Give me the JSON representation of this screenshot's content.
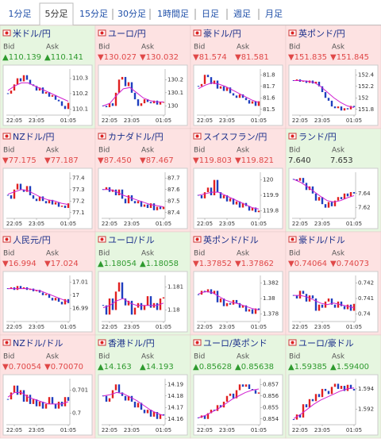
{
  "tabs": [
    "1分足",
    "5分足",
    "15分足",
    "30分足",
    "1時間足",
    "日足",
    "週足",
    "月足"
  ],
  "active_tab": 1,
  "bid_label": "Bid",
  "ask_label": "Ask",
  "xticks": [
    {
      "value": 2,
      "label": "22:05"
    },
    {
      "value": 9,
      "label": "23:05"
    },
    {
      "value": 19,
      "label": "01:05"
    }
  ],
  "tiles": [
    {
      "name": "米ドル/円",
      "trend": "up",
      "bid": "▲110.139",
      "ask": "▲110.141",
      "chart": {
        "ylim": [
          110.06,
          110.36
        ],
        "yticks": [
          110.3,
          110.2,
          110.1
        ],
        "closes": [
          110.2,
          110.22,
          110.26,
          110.3,
          110.28,
          110.32,
          110.29,
          110.26,
          110.25,
          110.22,
          110.24,
          110.2,
          110.21,
          110.18,
          110.19,
          110.16,
          110.15,
          110.12,
          110.1,
          110.14
        ],
        "ma": [
          110.22,
          110.25,
          110.27,
          110.27,
          110.25,
          110.23,
          110.21,
          110.19,
          110.17,
          110.15
        ]
      }
    },
    {
      "name": "ユーロ/円",
      "trend": "down",
      "bid": "▼130.027",
      "ask": "▼130.032",
      "chart": {
        "ylim": [
          129.93,
          130.28
        ],
        "yticks": [
          130.2,
          130.1,
          130
        ],
        "closes": [
          130.0,
          129.99,
          130.02,
          130.0,
          130.1,
          130.2,
          130.22,
          130.15,
          130.18,
          130.1,
          130.05,
          130.0,
          130.02,
          130.05,
          130.03,
          130.02,
          130.04,
          130.01,
          130.03,
          130.03
        ],
        "ma": [
          130.0,
          130.02,
          130.08,
          130.13,
          130.14,
          130.1,
          130.06,
          130.04,
          130.03,
          130.03
        ]
      }
    },
    {
      "name": "豪ドル/円",
      "trend": "down",
      "bid": "▼81.574",
      "ask": "▼81.581",
      "chart": {
        "ylim": [
          81.45,
          81.85
        ],
        "yticks": [
          81.8,
          81.7,
          81.6,
          81.5
        ],
        "closes": [
          81.7,
          81.72,
          81.8,
          81.78,
          81.72,
          81.75,
          81.68,
          81.7,
          81.66,
          81.69,
          81.64,
          81.62,
          81.6,
          81.63,
          81.6,
          81.58,
          81.55,
          81.57,
          81.53,
          81.57
        ],
        "ma": [
          81.68,
          81.71,
          81.73,
          81.72,
          81.7,
          81.67,
          81.64,
          81.61,
          81.58,
          81.56
        ]
      }
    },
    {
      "name": "英ポンド/円",
      "trend": "down",
      "bid": "▼151.835",
      "ask": "▼151.845",
      "chart": {
        "ylim": [
          151.7,
          152.5
        ],
        "yticks": [
          152.4,
          152.2,
          152,
          151.8
        ],
        "closes": [
          152.3,
          152.32,
          152.28,
          152.3,
          152.26,
          152.3,
          152.25,
          152.28,
          152.2,
          152.1,
          152.0,
          151.95,
          151.85,
          151.82,
          151.85,
          151.78,
          151.82,
          151.8,
          151.86,
          151.84
        ],
        "ma": [
          152.3,
          152.3,
          152.29,
          152.27,
          152.2,
          152.1,
          152.0,
          151.92,
          151.86,
          151.83
        ]
      }
    },
    {
      "name": "NZドル/円",
      "trend": "down",
      "bid": "▼77.175",
      "ask": "▼77.187",
      "chart": {
        "ylim": [
          77.05,
          77.45
        ],
        "yticks": [
          77.4,
          77.3,
          77.2,
          77.1
        ],
        "closes": [
          77.25,
          77.22,
          77.3,
          77.35,
          77.3,
          77.28,
          77.33,
          77.25,
          77.22,
          77.2,
          77.24,
          77.2,
          77.18,
          77.21,
          77.17,
          77.19,
          77.15,
          77.16,
          77.14,
          77.18
        ],
        "ma": [
          77.26,
          77.28,
          77.3,
          77.29,
          77.26,
          77.23,
          77.21,
          77.2,
          77.18,
          77.17
        ]
      }
    },
    {
      "name": "カナダドル/円",
      "trend": "down",
      "bid": "▼87.450",
      "ask": "▼87.467",
      "chart": {
        "ylim": [
          87.35,
          87.75
        ],
        "yticks": [
          87.7,
          87.6,
          87.5,
          87.4
        ],
        "closes": [
          87.6,
          87.62,
          87.58,
          87.6,
          87.55,
          87.6,
          87.52,
          87.48,
          87.55,
          87.5,
          87.48,
          87.5,
          87.45,
          87.47,
          87.44,
          87.48,
          87.42,
          87.45,
          87.43,
          87.45
        ],
        "ma": [
          87.6,
          87.6,
          87.58,
          87.55,
          87.53,
          87.51,
          87.49,
          87.47,
          87.46,
          87.45
        ]
      }
    },
    {
      "name": "スイスフラン/円",
      "trend": "down",
      "bid": "▼119.803",
      "ask": "▼119.821",
      "chart": {
        "ylim": [
          119.75,
          120.05
        ],
        "yticks": [
          120,
          119.9,
          119.8
        ],
        "closes": [
          119.9,
          119.88,
          119.92,
          119.95,
          119.9,
          120.0,
          119.92,
          119.88,
          119.9,
          119.86,
          119.88,
          119.84,
          119.86,
          119.82,
          119.85,
          119.83,
          119.8,
          119.82,
          119.79,
          119.8
        ],
        "ma": [
          119.9,
          119.91,
          119.92,
          119.92,
          119.9,
          119.88,
          119.86,
          119.84,
          119.82,
          119.81
        ]
      }
    },
    {
      "name": "ランド/円",
      "trend": "up",
      "bid": "7.640",
      "ask": "7.653",
      "chart": {
        "ylim": [
          7.605,
          7.67
        ],
        "yticks": [
          7.64,
          7.62
        ],
        "closes": [
          7.66,
          7.658,
          7.662,
          7.655,
          7.645,
          7.65,
          7.64,
          7.63,
          7.635,
          7.625,
          7.62,
          7.628,
          7.622,
          7.63,
          7.635,
          7.632,
          7.64,
          7.636,
          7.642,
          7.64
        ],
        "ma": [
          7.66,
          7.656,
          7.65,
          7.643,
          7.636,
          7.63,
          7.628,
          7.63,
          7.634,
          7.637
        ]
      }
    },
    {
      "name": "人民元/円",
      "trend": "down",
      "bid": "▼16.994",
      "ask": "▼17.024",
      "chart": {
        "ylim": [
          16.98,
          17.015
        ],
        "yticks": [
          17.01,
          17,
          16.99
        ],
        "closes": [
          17.005,
          17.006,
          17.004,
          17.007,
          17.005,
          17.006,
          17.004,
          17.005,
          17.003,
          17.004,
          17.002,
          17.0,
          17.001,
          16.998,
          16.996,
          16.998,
          16.995,
          16.993,
          16.997,
          16.994
        ],
        "ma": [
          17.005,
          17.005,
          17.005,
          17.005,
          17.004,
          17.003,
          17.001,
          16.999,
          16.997,
          16.995
        ]
      }
    },
    {
      "name": "ユーロ/ドル",
      "trend": "up",
      "bid": "▲1.18054",
      "ask": "▲1.18058",
      "chart": {
        "ylim": [
          1.1795,
          1.1815
        ],
        "yticks": [
          1.181,
          1.18
        ],
        "closes": [
          1.1802,
          1.1798,
          1.1805,
          1.18,
          1.1808,
          1.1812,
          1.1805,
          1.1802,
          1.1804,
          1.1798,
          1.1801,
          1.1803,
          1.18,
          1.1802,
          1.1806,
          1.1801,
          1.1803,
          1.18,
          1.1805,
          1.18055
        ],
        "ma": [
          1.1801,
          1.1802,
          1.1804,
          1.1805,
          1.1803,
          1.1802,
          1.1802,
          1.1802,
          1.1802,
          1.1803
        ]
      }
    },
    {
      "name": "英ポンド/ドル",
      "trend": "down",
      "bid": "▼1.37852",
      "ask": "▼1.37862",
      "chart": {
        "ylim": [
          1.377,
          1.383
        ],
        "yticks": [
          1.382,
          1.38,
          1.378
        ],
        "closes": [
          1.3805,
          1.381,
          1.3808,
          1.3812,
          1.3806,
          1.381,
          1.3795,
          1.38,
          1.379,
          1.3794,
          1.3792,
          1.3798,
          1.3794,
          1.3788,
          1.3791,
          1.3783,
          1.3786,
          1.378,
          1.3787,
          1.3785
        ],
        "ma": [
          1.3806,
          1.3809,
          1.3808,
          1.3803,
          1.3798,
          1.3795,
          1.3793,
          1.379,
          1.3787,
          1.3785
        ]
      }
    },
    {
      "name": "豪ドル/ドル",
      "trend": "down",
      "bid": "▼0.74064",
      "ask": "▼0.74073",
      "chart": {
        "ylim": [
          0.7395,
          0.7425
        ],
        "yticks": [
          0.742,
          0.741,
          0.74
        ],
        "closes": [
          0.7412,
          0.741,
          0.7415,
          0.7413,
          0.7408,
          0.7412,
          0.741,
          0.7402,
          0.7406,
          0.7404,
          0.7408,
          0.741,
          0.7406,
          0.7404,
          0.7408,
          0.7405,
          0.7403,
          0.7406,
          0.7402,
          0.74065
        ],
        "ma": [
          0.7412,
          0.7412,
          0.7411,
          0.7409,
          0.7407,
          0.7406,
          0.7407,
          0.7406,
          0.7405,
          0.7404
        ]
      }
    },
    {
      "name": "NZドル/ドル",
      "trend": "down",
      "bid": "▼0.70054",
      "ask": "▼0.70070",
      "chart": {
        "ylim": [
          0.6995,
          0.7015
        ],
        "yticks": [
          0.701,
          0.7
        ],
        "closes": [
          0.7006,
          0.7009,
          0.7012,
          0.7008,
          0.701,
          0.7005,
          0.7008,
          0.7004,
          0.7006,
          0.7003,
          0.7005,
          0.7002,
          0.7004,
          0.7007,
          0.7004,
          0.7002,
          0.7005,
          0.7003,
          0.7007,
          0.70054
        ],
        "ma": [
          0.7007,
          0.7009,
          0.7009,
          0.7007,
          0.7006,
          0.7005,
          0.7004,
          0.7004,
          0.7004,
          0.7005
        ]
      }
    },
    {
      "name": "香港ドル/円",
      "trend": "up",
      "bid": "▲14.163",
      "ask": "▲14.193",
      "chart": {
        "ylim": [
          14.155,
          14.195
        ],
        "yticks": [
          14.19,
          14.18,
          14.17,
          14.16
        ],
        "closes": [
          14.18,
          14.175,
          14.178,
          14.185,
          14.19,
          14.183,
          14.18,
          14.176,
          14.18,
          14.175,
          14.17,
          14.174,
          14.168,
          14.165,
          14.168,
          14.162,
          14.166,
          14.16,
          14.164,
          14.163
        ],
        "ma": [
          14.18,
          14.181,
          14.183,
          14.182,
          14.179,
          14.176,
          14.172,
          14.168,
          14.165,
          14.163
        ]
      }
    },
    {
      "name": "ユーロ/英ポンド",
      "trend": "up",
      "bid": "▲0.85628",
      "ask": "▲0.85638",
      "chart": {
        "ylim": [
          0.8535,
          0.8575
        ],
        "yticks": [
          0.857,
          0.856,
          0.855,
          0.854
        ],
        "closes": [
          0.8541,
          0.8543,
          0.854,
          0.8545,
          0.8548,
          0.8547,
          0.8552,
          0.855,
          0.8555,
          0.856,
          0.8562,
          0.8558,
          0.8565,
          0.857,
          0.8568,
          0.857,
          0.8566,
          0.8565,
          0.8562,
          0.8563
        ],
        "ma": [
          0.8541,
          0.8543,
          0.8546,
          0.8549,
          0.8553,
          0.8557,
          0.856,
          0.8563,
          0.8565,
          0.8566
        ]
      }
    },
    {
      "name": "ユーロ/豪ドル",
      "trend": "up",
      "bid": "▲1.59385",
      "ask": "▲1.59400",
      "chart": {
        "ylim": [
          1.5905,
          1.595
        ],
        "yticks": [
          1.594,
          1.592
        ],
        "closes": [
          1.591,
          1.5915,
          1.5912,
          1.5925,
          1.5922,
          1.593,
          1.5928,
          1.5935,
          1.5932,
          1.594,
          1.5938,
          1.5935,
          1.5942,
          1.5945,
          1.594,
          1.5943,
          1.5938,
          1.5944,
          1.594,
          1.59385
        ],
        "ma": [
          1.5911,
          1.5915,
          1.592,
          1.5925,
          1.5929,
          1.5932,
          1.5935,
          1.5938,
          1.594,
          1.5941
        ]
      }
    }
  ]
}
